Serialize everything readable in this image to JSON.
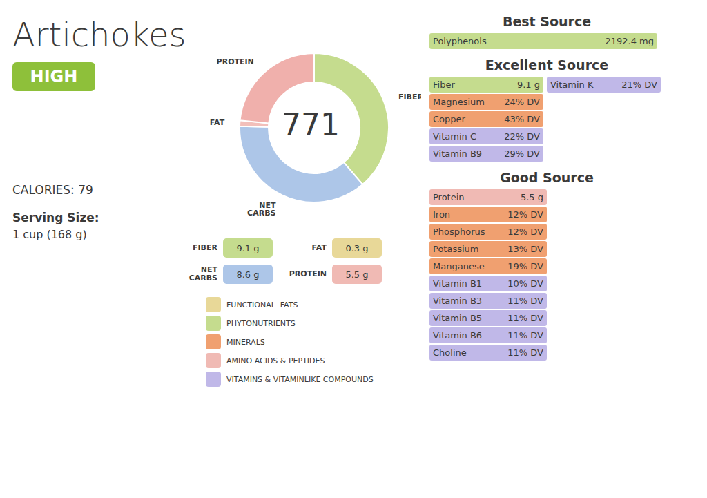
{
  "chart_data": {
    "type": "pie",
    "title": "Artichokes",
    "categories": [
      "FIBER",
      "NET\nCARBS",
      "FAT",
      "PROTEIN"
    ],
    "values": [
      9.1,
      8.6,
      0.3,
      5.5
    ],
    "colors": [
      "#c5dc8e",
      "#adc6e8",
      "#f2bfba",
      "#f0b0ac"
    ],
    "annotations": [
      [
        {
          "label": "HIGH",
          "color": "#8ec03a"
        },
        {
          "label": "CALORIES:  79"
        },
        {
          "label": "Serving Size:"
        },
        {
          "label": "1 cup (168 g)"
        }
      ],
      [
        {
          "label": "771"
        }
      ],
      [
        {
          "label": "FIBER",
          "value": "9.1 g",
          "color": "#c5dc8e"
        },
        {
          "label": "FAT",
          "value": "0.3 g",
          "color": "#e8d898"
        },
        {
          "label": "NET\nCARBS",
          "value": "8.6 g",
          "color": "#adc6e8"
        },
        {
          "label": "PROTEIN",
          "value": "5.5 g",
          "color": "#f0bab4"
        }
      ],
      [
        {
          "label": "FUNCTIONAL  FATS",
          "color": "#e8d898"
        },
        {
          "label": "PHYTONUTRIENTS",
          "color": "#c5dc8e"
        },
        {
          "label": "MINERALS",
          "color": "#f0a070"
        },
        {
          "label": "AMINO ACIDS & PEPTIDES",
          "color": "#f0bab4"
        },
        {
          "label": "VITAMINS & VITAMINLIKE COMPOUNDS",
          "color": "#c0b8e8"
        }
      ],
      [
        {
          "label": "Best Source"
        },
        {
          "label": "Polyphenols",
          "value": "2192.4 mg",
          "color": "#c5dc8e"
        }
      ],
      [
        {
          "label": "Excellent Source"
        },
        {
          "label": "Fiber",
          "value": "9.1 g",
          "color": "#c5dc8e"
        },
        {
          "label": "Magnesium",
          "value": "24% DV",
          "color": "#f0a070"
        },
        {
          "label": "Copper",
          "value": "43% DV",
          "color": "#f0a070"
        },
        {
          "label": "Vitamin C",
          "value": "22% DV",
          "color": "#c0b8e8"
        },
        {
          "label": "Vitamin B9",
          "value": "29% DV",
          "color": "#c0b8e8"
        },
        {
          "label": "Vitamin K",
          "value": "21% DV",
          "color": "#c0b8e8"
        }
      ],
      [
        {
          "label": "Good Source"
        },
        {
          "label": "Protein",
          "value": "5.5 g",
          "color": "#f0bab4"
        },
        {
          "label": "Iron",
          "value": "12% DV",
          "color": "#f0a070"
        },
        {
          "label": "Phosphorus",
          "value": "12% DV",
          "color": "#f0a070"
        },
        {
          "label": "Potassium",
          "value": "13% DV",
          "color": "#f0a070"
        },
        {
          "label": "Manganese",
          "value": "19% DV",
          "color": "#f0a070"
        },
        {
          "label": "Vitamin B1",
          "value": "10% DV",
          "color": "#c0b8e8"
        },
        {
          "label": "Vitamin B3",
          "value": "11% DV",
          "color": "#c0b8e8"
        },
        {
          "label": "Vitamin B5",
          "value": "11% DV",
          "color": "#c0b8e8"
        },
        {
          "label": "Vitamin B6",
          "value": "11% DV",
          "color": "#c0b8e8"
        },
        {
          "label": "Choline",
          "value": "11% DV",
          "color": "#c0b8e8"
        }
      ]
    ]
  }
}
